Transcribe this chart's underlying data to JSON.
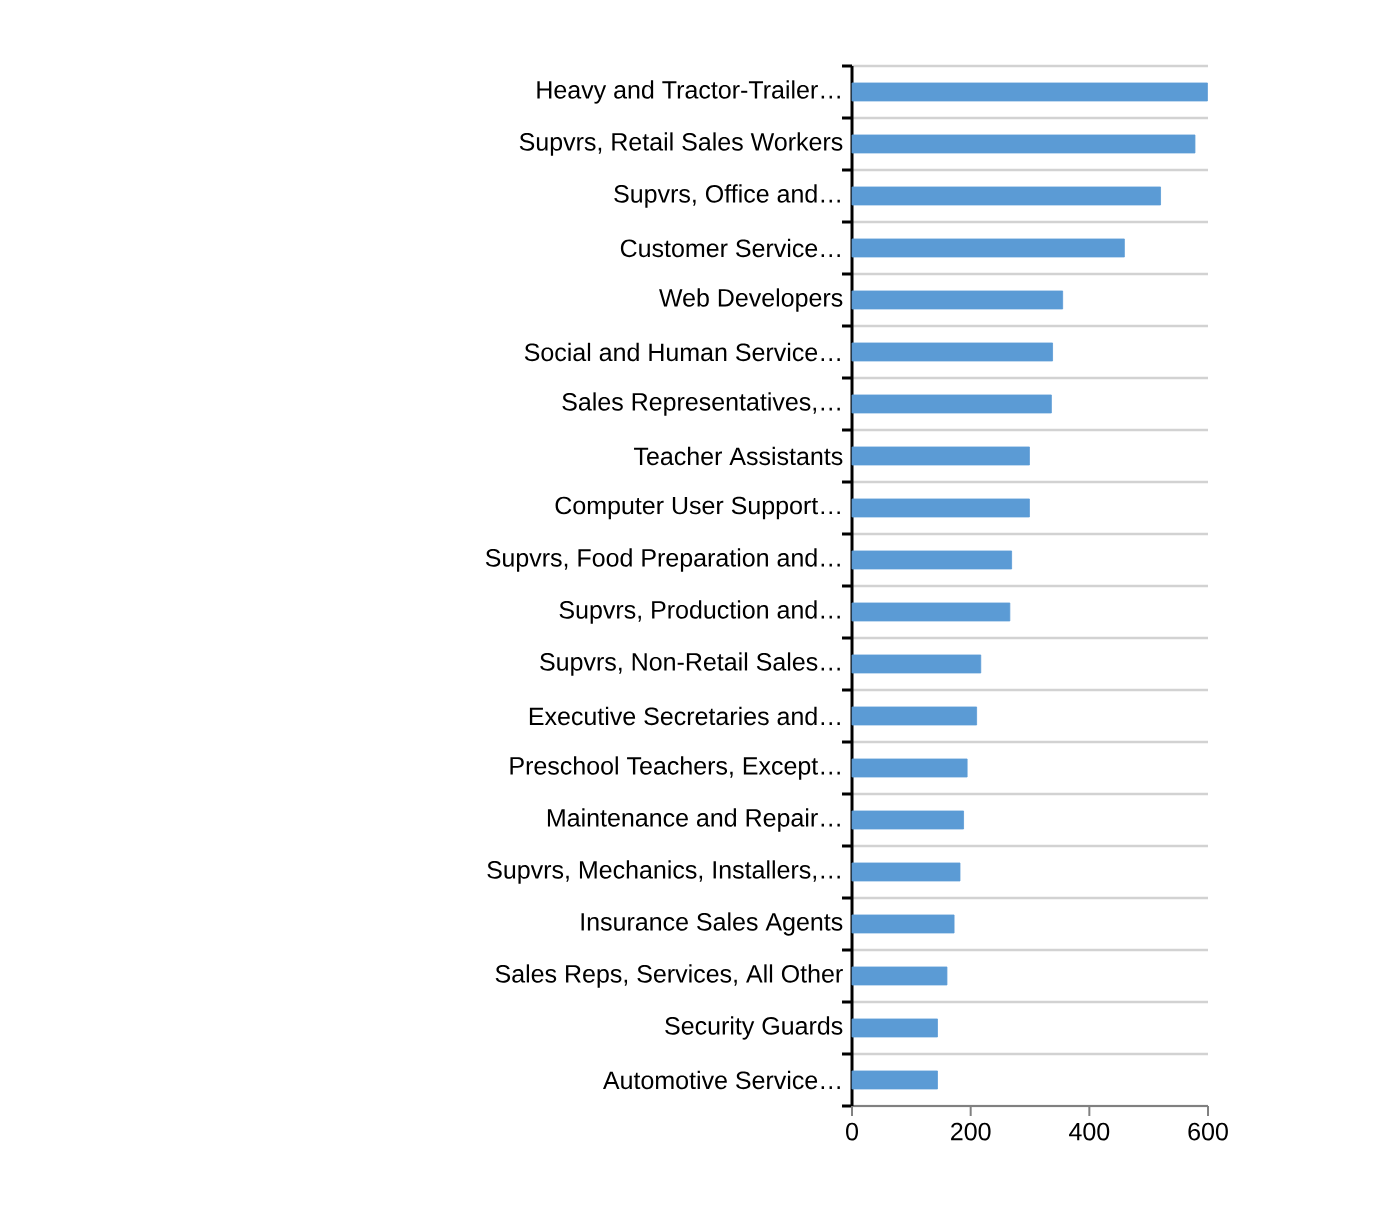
{
  "chart_data": {
    "type": "bar",
    "orientation": "horizontal",
    "categories": [
      "Heavy and Tractor-Trailer…",
      "Supvrs, Retail Sales Workers",
      "Supvrs, Office and…",
      "Customer Service…",
      "Web Developers",
      "Social and Human Service…",
      "Sales Representatives,…",
      "Teacher Assistants",
      "Computer User Support…",
      "Supvrs, Food Preparation and…",
      "Supvrs, Production and…",
      "Supvrs, Non-Retail Sales…",
      "Executive Secretaries and…",
      "Preschool Teachers, Except…",
      "Maintenance and Repair…",
      "Supvrs, Mechanics, Installers,…",
      "Insurance Sales Agents",
      "Sales Reps, Services, All Other",
      "Security Guards",
      "Automotive Service…"
    ],
    "values": [
      599,
      578,
      520,
      459,
      355,
      338,
      336,
      299,
      299,
      269,
      266,
      217,
      210,
      194,
      188,
      182,
      172,
      160,
      144,
      144
    ],
    "color": "#5b9bd5",
    "xlim": [
      0,
      600
    ],
    "xticks": [
      0,
      200,
      400,
      600
    ],
    "grid": "y"
  }
}
